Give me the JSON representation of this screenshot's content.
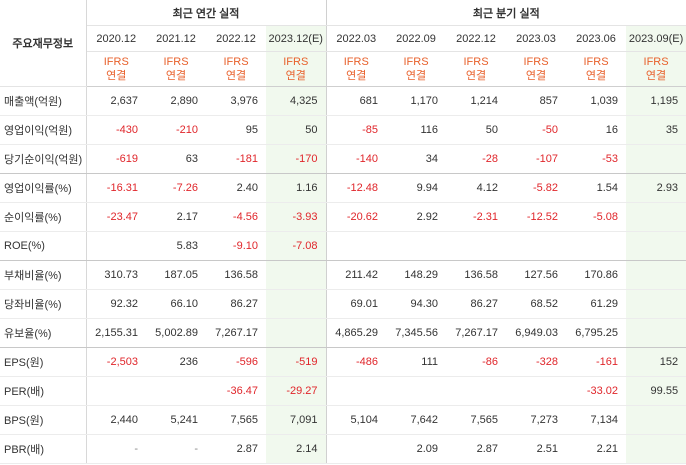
{
  "header": {
    "row_label": "주요재무정보",
    "annual_group": "최근 연간 실적",
    "quarter_group": "최근 분기 실적",
    "periods": [
      "2020.12",
      "2021.12",
      "2022.12",
      "2023.12(E)",
      "2022.03",
      "2022.09",
      "2022.12",
      "2023.03",
      "2023.06",
      "2023.09(E)"
    ],
    "standard_top": "IFRS",
    "standard_bottom": "연결"
  },
  "rows": [
    {
      "label": "매출액(억원)",
      "values": [
        "2,637",
        "2,890",
        "3,976",
        "4,325",
        "681",
        "1,170",
        "1,214",
        "857",
        "1,039",
        "1,195"
      ]
    },
    {
      "label": "영업이익(억원)",
      "values": [
        "-430",
        "-210",
        "95",
        "50",
        "-85",
        "116",
        "50",
        "-50",
        "16",
        "35"
      ]
    },
    {
      "label": "당기순이익(억원)",
      "values": [
        "-619",
        "63",
        "-181",
        "-170",
        "-140",
        "34",
        "-28",
        "-107",
        "-53",
        ""
      ]
    },
    {
      "label": "영업이익률(%)",
      "values": [
        "-16.31",
        "-7.26",
        "2.40",
        "1.16",
        "-12.48",
        "9.94",
        "4.12",
        "-5.82",
        "1.54",
        "2.93"
      ]
    },
    {
      "label": "순이익률(%)",
      "values": [
        "-23.47",
        "2.17",
        "-4.56",
        "-3.93",
        "-20.62",
        "2.92",
        "-2.31",
        "-12.52",
        "-5.08",
        ""
      ]
    },
    {
      "label": "ROE(%)",
      "values": [
        "",
        "5.83",
        "-9.10",
        "-7.08",
        "",
        "",
        "",
        "",
        "",
        ""
      ]
    },
    {
      "label": "부채비율(%)",
      "values": [
        "310.73",
        "187.05",
        "136.58",
        "",
        "211.42",
        "148.29",
        "136.58",
        "127.56",
        "170.86",
        ""
      ]
    },
    {
      "label": "당좌비율(%)",
      "values": [
        "92.32",
        "66.10",
        "86.27",
        "",
        "69.01",
        "94.30",
        "86.27",
        "68.52",
        "61.29",
        ""
      ]
    },
    {
      "label": "유보율(%)",
      "values": [
        "2,155.31",
        "5,002.89",
        "7,267.17",
        "",
        "4,865.29",
        "7,345.56",
        "7,267.17",
        "6,949.03",
        "6,795.25",
        ""
      ]
    },
    {
      "label": "EPS(원)",
      "values": [
        "-2,503",
        "236",
        "-596",
        "-519",
        "-486",
        "111",
        "-86",
        "-328",
        "-161",
        "152"
      ]
    },
    {
      "label": "PER(배)",
      "values": [
        "",
        "",
        "-36.47",
        "-29.27",
        "",
        "",
        "",
        "",
        "-33.02",
        "99.55"
      ]
    },
    {
      "label": "BPS(원)",
      "values": [
        "2,440",
        "5,241",
        "7,565",
        "7,091",
        "5,104",
        "7,642",
        "7,565",
        "7,273",
        "7,134",
        ""
      ]
    },
    {
      "label": "PBR(배)",
      "values": [
        "-",
        "-",
        "2.87",
        "2.14",
        "",
        "2.09",
        "2.87",
        "2.51",
        "2.21",
        ""
      ]
    }
  ]
}
